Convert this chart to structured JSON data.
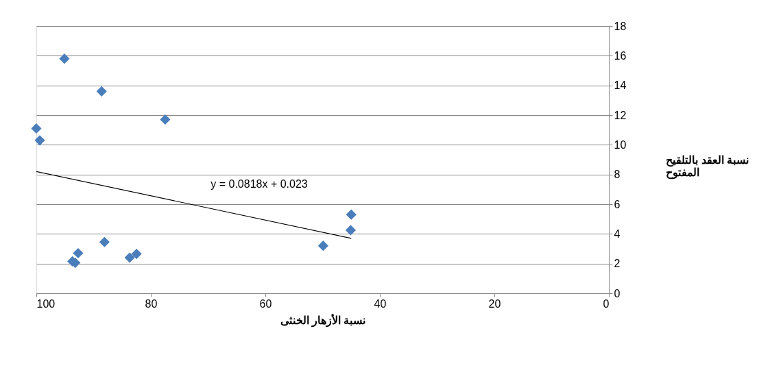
{
  "chart_data": {
    "type": "scatter",
    "xlabel": "نسبة الأزهار الخنثى",
    "ylabel": "نسبة العقد بالتلقيح المفتوح",
    "xlim": [
      100,
      0
    ],
    "xticks": [
      100,
      80,
      60,
      40,
      20,
      0
    ],
    "ylim": [
      0,
      18
    ],
    "yticks": [
      0,
      2,
      4,
      6,
      8,
      10,
      12,
      14,
      16,
      18
    ],
    "grid": "y",
    "series": [
      {
        "color": "#4a7ebb",
        "marker": "diamond",
        "x": [
          95.1,
          88.6,
          77.5,
          100,
          99.4,
          45.0,
          45.1,
          49.9,
          88.1,
          92.7,
          93.7,
          93.2,
          83.7,
          82.5
        ],
        "values": [
          15.8,
          13.6,
          11.7,
          11.1,
          10.3,
          5.3,
          4.25,
          3.2,
          3.45,
          2.7,
          2.15,
          2.05,
          2.4,
          2.65
        ]
      },
      {
        "type": "line",
        "color": "#000000",
        "x": [
          100,
          45
        ],
        "values": [
          8.2,
          3.7
        ]
      }
    ],
    "annotations": [
      "y = 0.0818x + 0.023"
    ]
  }
}
